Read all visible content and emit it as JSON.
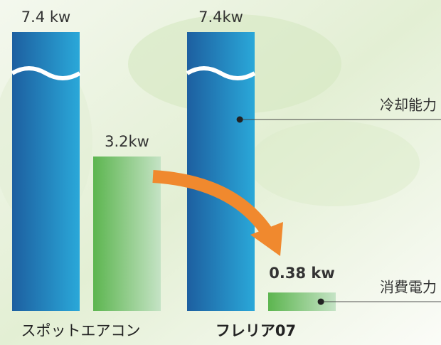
{
  "chart_data": {
    "type": "bar",
    "categories": [
      "スポットエアコン",
      "フレリア07"
    ],
    "series": [
      {
        "name": "冷却能力",
        "color": "#1d5fa0",
        "values": [
          7.4,
          7.4
        ],
        "value_labels": [
          "7.4 kw",
          "7.4kw"
        ]
      },
      {
        "name": "消費電力",
        "color": "#5cb54f",
        "values": [
          3.2,
          0.38
        ],
        "value_labels": [
          "3.2kw",
          "0.38 kw"
        ]
      }
    ]
  }
}
